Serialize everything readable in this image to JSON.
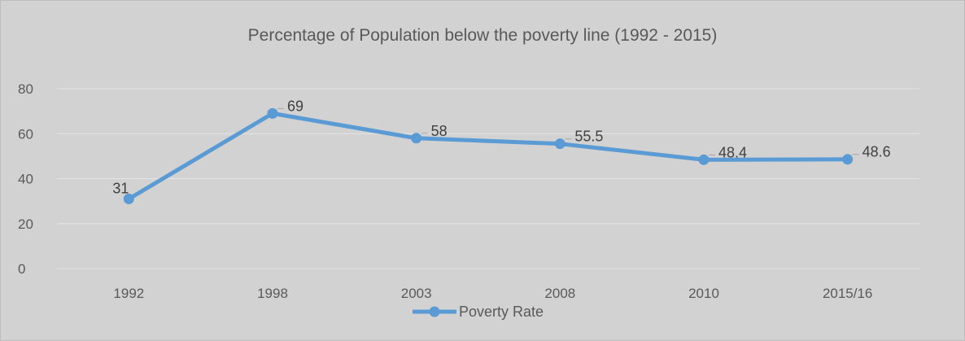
{
  "chart_data": {
    "type": "line",
    "title": "Percentage of Population below the poverty line (1992 - 2015)",
    "categories": [
      "1992",
      "1998",
      "2003",
      "2008",
      "2010",
      "2015/16"
    ],
    "series": [
      {
        "name": "Poverty Rate",
        "values": [
          31,
          69,
          58,
          55.5,
          48.4,
          48.6
        ],
        "labels": [
          "31",
          "69",
          "58",
          "55.5",
          "48.4",
          "48.6"
        ],
        "color": "#5b9bd5"
      }
    ],
    "y_ticks": [
      "0",
      "20",
      "40",
      "60",
      "80"
    ],
    "ylim": [
      0,
      80
    ],
    "grid": true,
    "legend": "bottom",
    "colors": {
      "background": "#d3d2d2",
      "gridline": "#e4e4e4",
      "text": "#595959"
    }
  }
}
